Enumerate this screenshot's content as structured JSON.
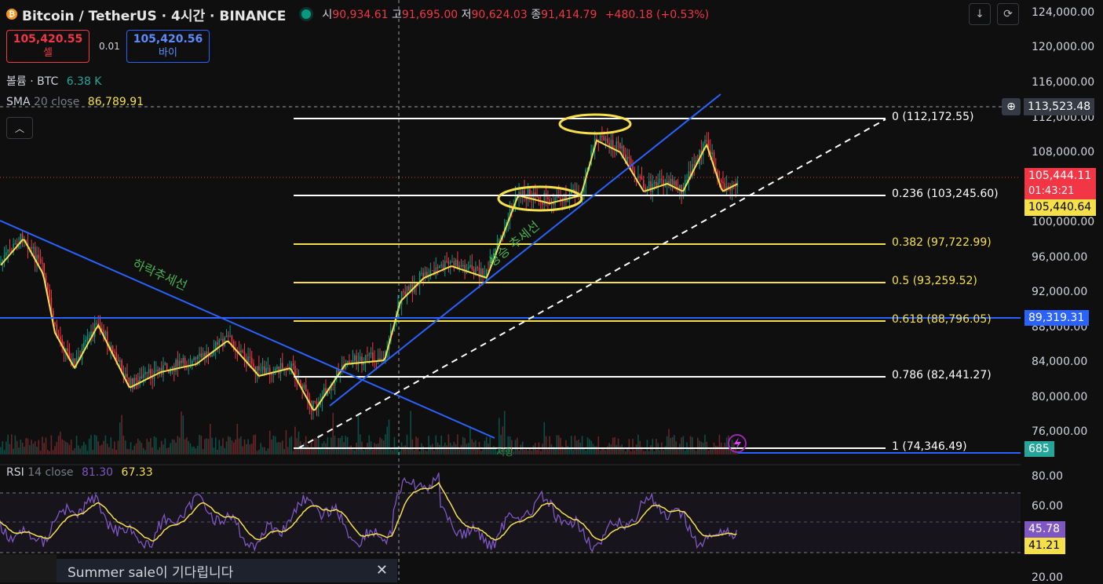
{
  "header": {
    "logo_letter": "₿",
    "symbol": "Bitcoin / TetherUS · 4시간 · BINANCE",
    "open_label": "시",
    "open": "90,934.61",
    "high_label": "고",
    "high": "91,695.00",
    "low_label": "저",
    "low": "90,624.03",
    "close_label": "종",
    "close": "91,414.79",
    "change": "+480.18 (+0.53%)"
  },
  "trade": {
    "sell_price": "105,420.55",
    "sell_label": "셀",
    "spread": "0.01",
    "buy_price": "105,420.56",
    "buy_label": "바이"
  },
  "indicators": {
    "volume_label": "볼륨 · BTC",
    "volume_value": "6.38 K",
    "sma_label": "SMA",
    "sma_params": "20 close",
    "sma_value": "86,789.91",
    "collapse_icon": "chevron-up-icon"
  },
  "toolbar": {
    "download_icon": "arrow-down-icon",
    "reset_icon": "refresh-icon"
  },
  "price_axis": {
    "ticks": [
      "124,000.00",
      "120,000.00",
      "116,000.00",
      "112,000.00",
      "108,000.00",
      "100,000.00",
      "96,000.00",
      "92,000.00",
      "88,000.00",
      "84,000.00",
      "80,000.00",
      "76,000.00"
    ],
    "crosshair_price": "113,523.48",
    "last_price": "105,444.11",
    "countdown": "01:43:21",
    "sma_price": "105,440.64",
    "line_price": "89,319.31",
    "volume_tag": "685"
  },
  "fibonacci": [
    {
      "label": "0 (112,172.55)",
      "color": "#ffffff"
    },
    {
      "label": "0.236 (103,245.60)",
      "color": "#ffffff"
    },
    {
      "label": "0.382 (97,722.99)",
      "color": "#f5e04a"
    },
    {
      "label": "0.5 (93,259.52)",
      "color": "#f5e04a"
    },
    {
      "label": "0.618 (88,796.05)",
      "color": "#f5e04a"
    },
    {
      "label": "0.786 (82,441.27)",
      "color": "#ffffff"
    },
    {
      "label": "1 (74,346.49)",
      "color": "#ffffff"
    }
  ],
  "annotations": {
    "downtrend": "하락추세선",
    "uptrend": "상승 추세선",
    "volume_marker": "저항"
  },
  "rsi": {
    "label": "RSI",
    "params": "14 close",
    "value": "81.30",
    "ma_value": "67.33",
    "ticks": [
      "80.00",
      "60.00",
      "20.00"
    ],
    "rsi_tag": "45.78",
    "ma_tag": "41.21"
  },
  "toast": {
    "text": "Summer sale이 기다립니다",
    "close_icon": "close-icon"
  },
  "colors": {
    "background": "#0f0f0f",
    "up": "#089981",
    "down": "#f23645",
    "sma": "#f5e04a",
    "trendline": "#2962ff",
    "rsi": "#7e57c2"
  }
}
